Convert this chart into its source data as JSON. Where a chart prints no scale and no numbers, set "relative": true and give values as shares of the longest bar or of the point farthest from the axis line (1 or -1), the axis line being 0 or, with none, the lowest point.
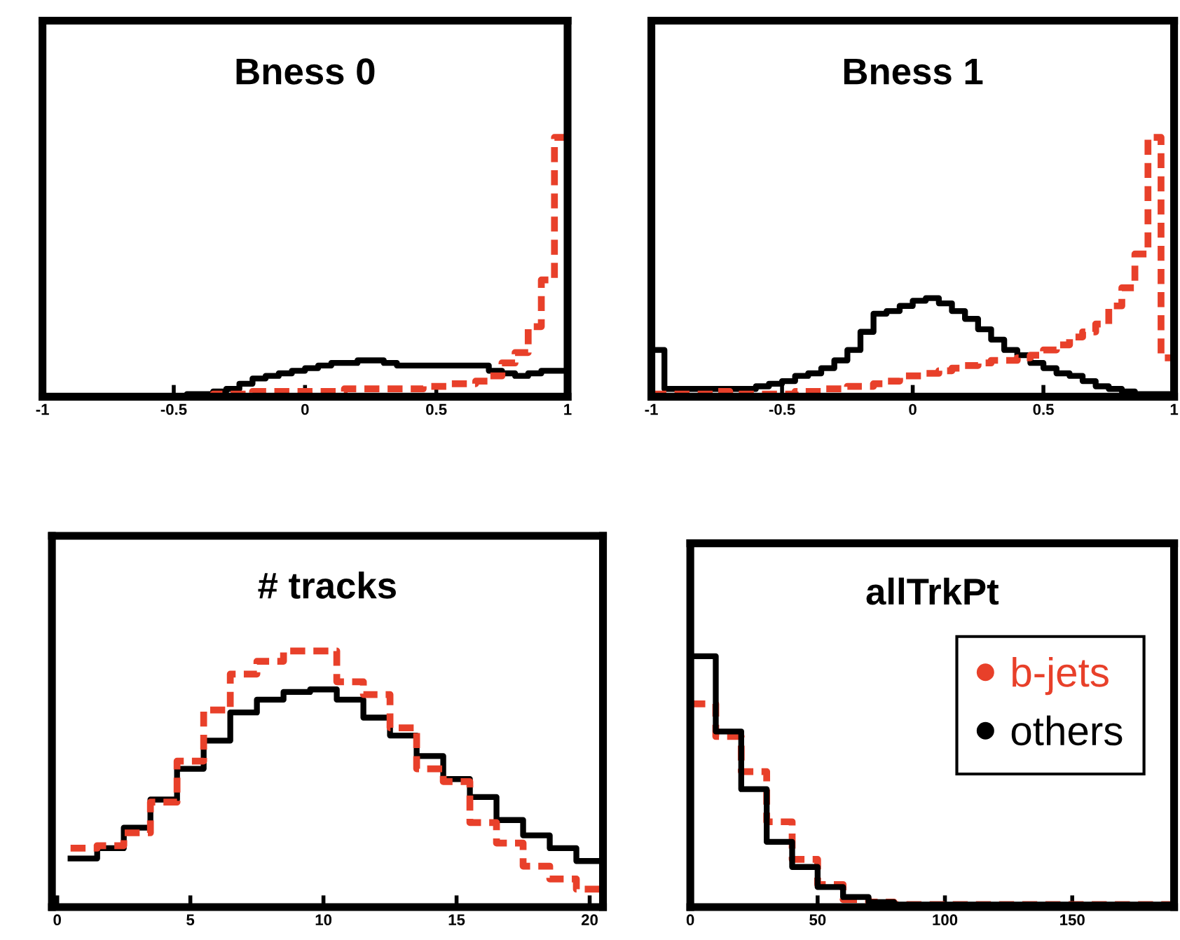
{
  "chart_data": [
    {
      "type": "step",
      "title": "Bness 0",
      "relative": true,
      "tick_labels": "x",
      "xlim": [
        -1,
        1
      ],
      "xticks": [
        -1,
        -0.5,
        0,
        0.5,
        1
      ],
      "x": [
        -1,
        -0.95,
        -0.9,
        -0.85,
        -0.8,
        -0.75,
        -0.7,
        -0.65,
        -0.6,
        -0.55,
        -0.5,
        -0.45,
        -0.4,
        -0.35,
        -0.3,
        -0.25,
        -0.2,
        -0.15,
        -0.1,
        -0.05,
        0,
        0.05,
        0.1,
        0.15,
        0.2,
        0.25,
        0.3,
        0.35,
        0.4,
        0.45,
        0.5,
        0.55,
        0.6,
        0.65,
        0.7,
        0.75,
        0.8,
        0.85,
        0.9,
        0.95,
        1
      ],
      "series": [
        {
          "color": "#000000",
          "line_style": "solid",
          "values": [
            0,
            0,
            0,
            0,
            0,
            0,
            0,
            0,
            0,
            0,
            0,
            0.01,
            0.01,
            0.02,
            0.03,
            0.05,
            0.07,
            0.08,
            0.09,
            0.1,
            0.11,
            0.12,
            0.13,
            0.13,
            0.14,
            0.14,
            0.13,
            0.12,
            0.12,
            0.12,
            0.12,
            0.12,
            0.12,
            0.12,
            0.1,
            0.09,
            0.08,
            0.09,
            0.1,
            0.1,
            0.1
          ]
        },
        {
          "color": "#e8402a",
          "line_style": "dashed",
          "values": [
            null,
            null,
            null,
            null,
            null,
            null,
            null,
            null,
            null,
            null,
            null,
            0,
            0,
            0.01,
            0.01,
            0.01,
            0.02,
            0.02,
            0.02,
            0.02,
            0.02,
            0.02,
            0.02,
            0.03,
            0.03,
            0.03,
            0.03,
            0.03,
            0.03,
            0.04,
            0.04,
            0.05,
            0.05,
            0.06,
            0.08,
            0.13,
            0.17,
            0.27,
            0.45,
            1,
            1
          ]
        }
      ]
    },
    {
      "type": "step",
      "title": "Bness 1",
      "relative": true,
      "tick_labels": "x",
      "xlim": [
        -1,
        1
      ],
      "xticks": [
        -1,
        -0.5,
        0,
        0.5,
        1
      ],
      "x": [
        -1,
        -0.95,
        -0.9,
        -0.85,
        -0.8,
        -0.75,
        -0.7,
        -0.65,
        -0.6,
        -0.55,
        -0.5,
        -0.45,
        -0.4,
        -0.35,
        -0.3,
        -0.25,
        -0.2,
        -0.15,
        -0.1,
        -0.05,
        0,
        0.05,
        0.1,
        0.15,
        0.2,
        0.25,
        0.3,
        0.35,
        0.4,
        0.45,
        0.5,
        0.55,
        0.6,
        0.65,
        0.7,
        0.75,
        0.8,
        0.85,
        0.9,
        0.95,
        1
      ],
      "series": [
        {
          "color": "#000000",
          "line_style": "solid",
          "values": [
            0.18,
            0.03,
            0.03,
            0.03,
            0.03,
            0.03,
            0.03,
            0.03,
            0.04,
            0.05,
            0.06,
            0.08,
            0.09,
            0.11,
            0.14,
            0.18,
            0.25,
            0.32,
            0.33,
            0.35,
            0.37,
            0.38,
            0.36,
            0.33,
            0.3,
            0.26,
            0.22,
            0.18,
            0.16,
            0.13,
            0.11,
            0.09,
            0.08,
            0.06,
            0.04,
            0.03,
            0.02,
            0.01,
            0.01,
            0.01,
            0.01
          ]
        },
        {
          "color": "#e8402a",
          "line_style": "dashed",
          "values": [
            0.01,
            0.01,
            0.01,
            0.01,
            0.01,
            0.02,
            0.01,
            0.01,
            0.01,
            0.01,
            0.01,
            0.02,
            0.02,
            0.03,
            0.03,
            0.04,
            0.04,
            0.05,
            0.06,
            0.08,
            0.08,
            0.09,
            0.1,
            0.11,
            0.12,
            0.13,
            0.14,
            0.14,
            0.15,
            0.16,
            0.18,
            0.2,
            0.23,
            0.25,
            0.28,
            0.35,
            0.42,
            0.55,
            1,
            0.15,
            0.15
          ]
        }
      ]
    },
    {
      "type": "step",
      "title": "# tracks",
      "relative": true,
      "tick_labels": "x",
      "xlim": [
        -0.2,
        20.5
      ],
      "xticks": [
        0,
        5,
        10,
        15,
        20
      ],
      "x": [
        0.5,
        1.5,
        2.5,
        3.5,
        4.5,
        5.5,
        6.5,
        7.5,
        8.5,
        9.5,
        10.5,
        11.5,
        12.5,
        13.5,
        14.5,
        15.5,
        16.5,
        17.5,
        18.5,
        19.5,
        20.5
      ],
      "series": [
        {
          "color": "#000000",
          "line_style": "solid",
          "values": [
            0.19,
            0.23,
            0.31,
            0.42,
            0.54,
            0.65,
            0.76,
            0.81,
            0.84,
            0.85,
            0.81,
            0.74,
            0.67,
            0.59,
            0.5,
            0.43,
            0.34,
            0.28,
            0.23,
            0.18,
            0.18
          ]
        },
        {
          "color": "#e8402a",
          "line_style": "dashed",
          "values": [
            0.23,
            0.24,
            0.29,
            0.41,
            0.57,
            0.77,
            0.91,
            0.96,
            1,
            1,
            0.88,
            0.83,
            0.7,
            0.54,
            0.49,
            0.33,
            0.25,
            0.16,
            0.11,
            0.07,
            0.07
          ]
        }
      ]
    },
    {
      "type": "step",
      "title": "allTrkPt",
      "relative": true,
      "tick_labels": "x",
      "xlim": [
        0,
        190
      ],
      "xticks": [
        0,
        50,
        100,
        150
      ],
      "legend": "top right",
      "x": [
        0,
        10,
        20,
        30,
        40,
        50,
        60,
        70,
        80,
        90,
        100,
        110,
        120,
        130,
        140,
        150,
        160,
        170,
        180,
        190
      ],
      "series": [
        {
          "name": "b-jets",
          "color": "#e8402a",
          "line_style": "dashed",
          "values": [
            0.81,
            0.68,
            0.54,
            0.34,
            0.19,
            0.09,
            0.03,
            0.02,
            0.01,
            0.01,
            0.01,
            0.01,
            0.01,
            0.01,
            0.01,
            0.01,
            0.01,
            0.01,
            0.01,
            0.01
          ]
        },
        {
          "name": "others",
          "color": "#000000",
          "line_style": "solid",
          "values": [
            1,
            0.7,
            0.47,
            0.26,
            0.16,
            0.08,
            0.04,
            0.02,
            0.01,
            0.01,
            0.01,
            0.01,
            0.01,
            0.01,
            0.01,
            0.01,
            0.01,
            0.01,
            0.01,
            0.01
          ]
        }
      ]
    }
  ]
}
